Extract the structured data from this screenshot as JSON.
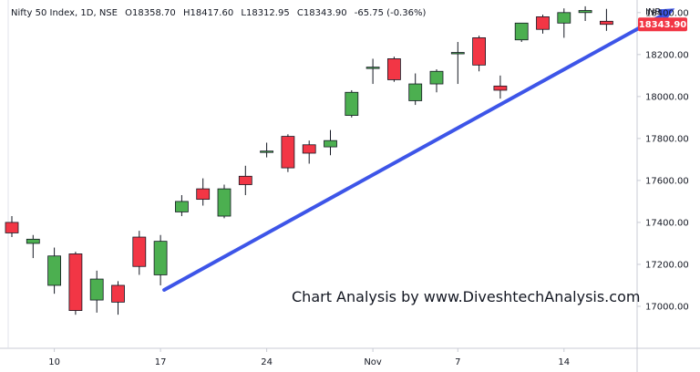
{
  "chart_data": {
    "type": "candlestick",
    "header": {
      "symbol": "Nifty 50 Index, 1D, NSE",
      "open_label": "O",
      "open": "18358.70",
      "high_label": "H",
      "high": "18417.60",
      "low_label": "L",
      "low": "18312.95",
      "close_label": "C",
      "close": "18343.90",
      "change": "-65.75 (-0.36%)"
    },
    "currency": "INR",
    "last_price": "18343.90",
    "ylim": [
      16800,
      18460
    ],
    "y_ticks": [
      17000,
      17200,
      17400,
      17600,
      17800,
      18000,
      18200,
      18400
    ],
    "y_tick_labels": [
      "17000.00",
      "17200.00",
      "17400.00",
      "17600.00",
      "17800.00",
      "18000.00",
      "18200.00",
      "18400.00"
    ],
    "x_ticks": [
      {
        "label": "10",
        "index": 2
      },
      {
        "label": "17",
        "index": 7
      },
      {
        "label": "24",
        "index": 12
      },
      {
        "label": "Nov",
        "index": 17
      },
      {
        "label": "7",
        "index": 21
      },
      {
        "label": "14",
        "index": 26
      }
    ],
    "up_color": "#4caf50",
    "down_color": "#f23645",
    "wick_color": "#131722",
    "candles": [
      {
        "o": 17400,
        "h": 17430,
        "l": 17330,
        "c": 17350
      },
      {
        "o": 17300,
        "h": 17340,
        "l": 17230,
        "c": 17320
      },
      {
        "o": 17100,
        "h": 17280,
        "l": 17060,
        "c": 17240
      },
      {
        "o": 17250,
        "h": 17260,
        "l": 16960,
        "c": 16980
      },
      {
        "o": 17030,
        "h": 17170,
        "l": 16970,
        "c": 17130
      },
      {
        "o": 17100,
        "h": 17120,
        "l": 16960,
        "c": 17020
      },
      {
        "o": 17330,
        "h": 17360,
        "l": 17150,
        "c": 17190
      },
      {
        "o": 17150,
        "h": 17340,
        "l": 17100,
        "c": 17310
      },
      {
        "o": 17450,
        "h": 17530,
        "l": 17430,
        "c": 17500
      },
      {
        "o": 17560,
        "h": 17610,
        "l": 17480,
        "c": 17510
      },
      {
        "o": 17430,
        "h": 17580,
        "l": 17420,
        "c": 17560
      },
      {
        "o": 17620,
        "h": 17670,
        "l": 17530,
        "c": 17580
      },
      {
        "o": 17740,
        "h": 17780,
        "l": 17710,
        "c": 17740
      },
      {
        "o": 17810,
        "h": 17820,
        "l": 17640,
        "c": 17660
      },
      {
        "o": 17770,
        "h": 17790,
        "l": 17680,
        "c": 17730
      },
      {
        "o": 17760,
        "h": 17840,
        "l": 17720,
        "c": 17790
      },
      {
        "o": 17910,
        "h": 18030,
        "l": 17900,
        "c": 18020
      },
      {
        "o": 18140,
        "h": 18180,
        "l": 18060,
        "c": 18140
      },
      {
        "o": 18180,
        "h": 18190,
        "l": 18070,
        "c": 18080
      },
      {
        "o": 17980,
        "h": 18110,
        "l": 17960,
        "c": 18060
      },
      {
        "o": 18060,
        "h": 18130,
        "l": 18020,
        "c": 18120
      },
      {
        "o": 18210,
        "h": 18260,
        "l": 18060,
        "c": 18210
      },
      {
        "o": 18280,
        "h": 18290,
        "l": 18120,
        "c": 18150
      },
      {
        "o": 18050,
        "h": 18100,
        "l": 17990,
        "c": 18030
      },
      {
        "o": 18270,
        "h": 18350,
        "l": 18260,
        "c": 18350
      },
      {
        "o": 18380,
        "h": 18390,
        "l": 18300,
        "c": 18320
      },
      {
        "o": 18350,
        "h": 18420,
        "l": 18280,
        "c": 18400
      },
      {
        "o": 18400,
        "h": 18430,
        "l": 18360,
        "c": 18410
      },
      {
        "o": 18358.7,
        "h": 18417.6,
        "l": 18312.95,
        "c": 18343.9
      }
    ],
    "trend_arrow": {
      "color": "#3d55e8",
      "from": {
        "index": 7,
        "value": 17100
      },
      "to": {
        "index": 31,
        "value": 18420
      }
    },
    "annotation": "Chart Analysis by www.DiveshtechAnalysis.com"
  }
}
